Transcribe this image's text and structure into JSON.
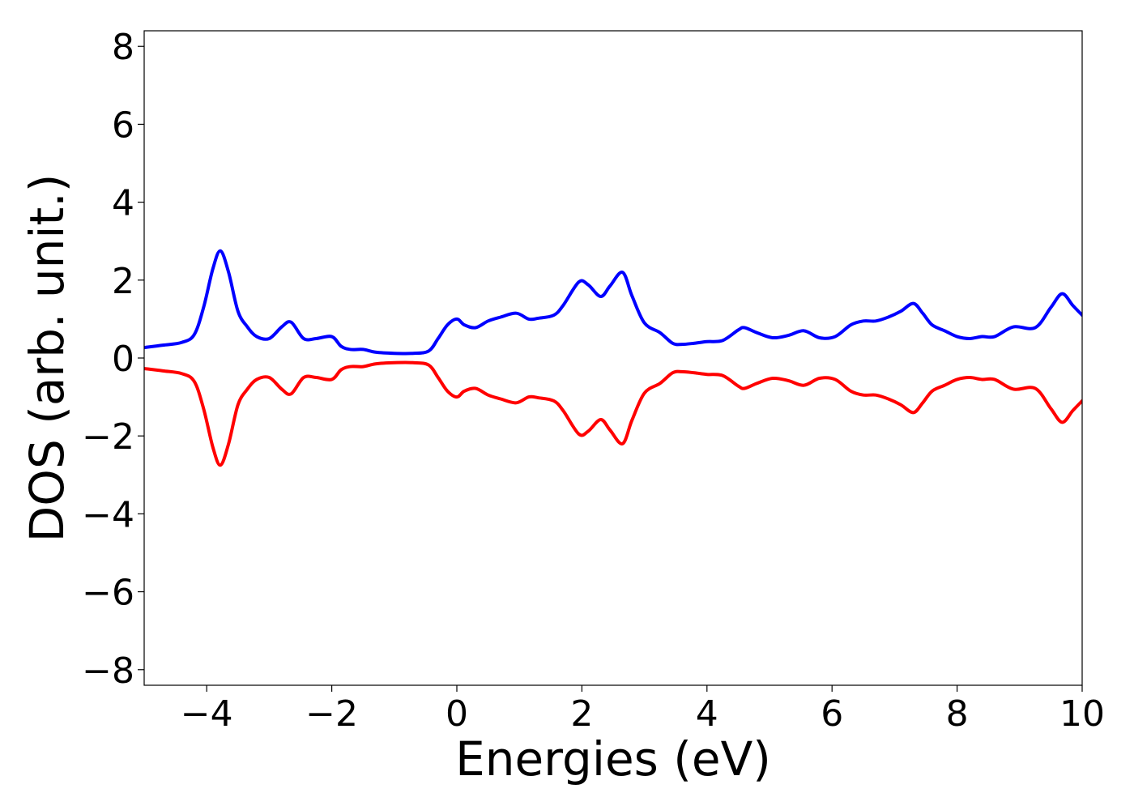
{
  "chart_data": {
    "type": "line",
    "title": "",
    "xlabel": "Energies (eV)",
    "ylabel": "DOS (arb. unit.)",
    "xlim": [
      -5,
      10
    ],
    "ylim": [
      -8.4,
      8.4
    ],
    "xticks": [
      -4,
      -2,
      0,
      2,
      4,
      6,
      8,
      10
    ],
    "yticks": [
      -8,
      -6,
      -4,
      -2,
      0,
      2,
      4,
      6,
      8
    ],
    "xtick_labels": [
      "−4",
      "−2",
      "0",
      "2",
      "4",
      "6",
      "8",
      "10"
    ],
    "ytick_labels": [
      "−8",
      "−6",
      "−4",
      "−2",
      "0",
      "2",
      "4",
      "6",
      "8"
    ],
    "grid": false,
    "legend": "none",
    "series": [
      {
        "color": "#0000ff",
        "x": [
          -5,
          -4.7,
          -4.4,
          -4.2,
          -4.05,
          -3.9,
          -3.78,
          -3.65,
          -3.5,
          -3.35,
          -3.2,
          -3.0,
          -2.8,
          -2.65,
          -2.45,
          -2.25,
          -2.0,
          -1.85,
          -1.7,
          -1.5,
          -1.3,
          -1.0,
          -0.7,
          -0.45,
          -0.3,
          -0.15,
          0.0,
          0.12,
          0.3,
          0.5,
          0.7,
          0.95,
          1.15,
          1.3,
          1.55,
          1.7,
          1.95,
          2.1,
          2.3,
          2.45,
          2.65,
          2.8,
          3.0,
          3.25,
          3.45,
          3.6,
          3.8,
          4.0,
          4.25,
          4.5,
          4.6,
          4.8,
          5.05,
          5.3,
          5.55,
          5.8,
          6.05,
          6.3,
          6.5,
          6.7,
          6.9,
          7.1,
          7.3,
          7.45,
          7.6,
          7.8,
          8.0,
          8.2,
          8.4,
          8.6,
          8.9,
          9.25,
          9.5,
          9.68,
          9.85,
          10.0
        ],
        "y": [
          0.27,
          0.33,
          0.4,
          0.6,
          1.3,
          2.3,
          2.75,
          2.2,
          1.2,
          0.8,
          0.55,
          0.5,
          0.8,
          0.92,
          0.5,
          0.5,
          0.55,
          0.3,
          0.22,
          0.22,
          0.15,
          0.12,
          0.12,
          0.18,
          0.5,
          0.85,
          1.0,
          0.85,
          0.78,
          0.95,
          1.05,
          1.15,
          1.0,
          1.02,
          1.1,
          1.35,
          1.95,
          1.88,
          1.58,
          1.85,
          2.2,
          1.6,
          0.9,
          0.65,
          0.38,
          0.35,
          0.38,
          0.42,
          0.45,
          0.72,
          0.78,
          0.65,
          0.52,
          0.58,
          0.7,
          0.52,
          0.55,
          0.85,
          0.95,
          0.95,
          1.05,
          1.2,
          1.4,
          1.15,
          0.85,
          0.7,
          0.55,
          0.5,
          0.55,
          0.55,
          0.8,
          0.78,
          1.3,
          1.65,
          1.35,
          1.1
        ]
      },
      {
        "color": "#ff0000",
        "x": [
          -5,
          -4.7,
          -4.4,
          -4.2,
          -4.05,
          -3.9,
          -3.78,
          -3.65,
          -3.5,
          -3.35,
          -3.2,
          -3.0,
          -2.8,
          -2.65,
          -2.45,
          -2.25,
          -2.0,
          -1.85,
          -1.7,
          -1.5,
          -1.3,
          -1.0,
          -0.7,
          -0.45,
          -0.3,
          -0.15,
          0.0,
          0.12,
          0.3,
          0.5,
          0.7,
          0.95,
          1.15,
          1.3,
          1.55,
          1.7,
          1.95,
          2.1,
          2.3,
          2.45,
          2.65,
          2.8,
          3.0,
          3.25,
          3.45,
          3.6,
          3.8,
          4.0,
          4.25,
          4.5,
          4.6,
          4.8,
          5.05,
          5.3,
          5.55,
          5.8,
          6.05,
          6.3,
          6.5,
          6.7,
          6.9,
          7.1,
          7.3,
          7.45,
          7.6,
          7.8,
          8.0,
          8.2,
          8.4,
          8.6,
          8.9,
          9.25,
          9.5,
          9.68,
          9.85,
          10.0
        ],
        "y": [
          -0.27,
          -0.33,
          -0.4,
          -0.6,
          -1.3,
          -2.3,
          -2.75,
          -2.2,
          -1.2,
          -0.8,
          -0.55,
          -0.5,
          -0.8,
          -0.92,
          -0.5,
          -0.5,
          -0.55,
          -0.3,
          -0.22,
          -0.22,
          -0.15,
          -0.12,
          -0.12,
          -0.18,
          -0.5,
          -0.85,
          -1.0,
          -0.85,
          -0.78,
          -0.95,
          -1.05,
          -1.15,
          -1.0,
          -1.02,
          -1.1,
          -1.35,
          -1.95,
          -1.88,
          -1.58,
          -1.85,
          -2.2,
          -1.6,
          -0.9,
          -0.65,
          -0.38,
          -0.35,
          -0.38,
          -0.42,
          -0.45,
          -0.72,
          -0.78,
          -0.65,
          -0.52,
          -0.58,
          -0.7,
          -0.52,
          -0.55,
          -0.85,
          -0.95,
          -0.95,
          -1.05,
          -1.2,
          -1.4,
          -1.15,
          -0.85,
          -0.7,
          -0.55,
          -0.5,
          -0.55,
          -0.55,
          -0.8,
          -0.78,
          -1.3,
          -1.65,
          -1.35,
          -1.1
        ]
      }
    ]
  }
}
